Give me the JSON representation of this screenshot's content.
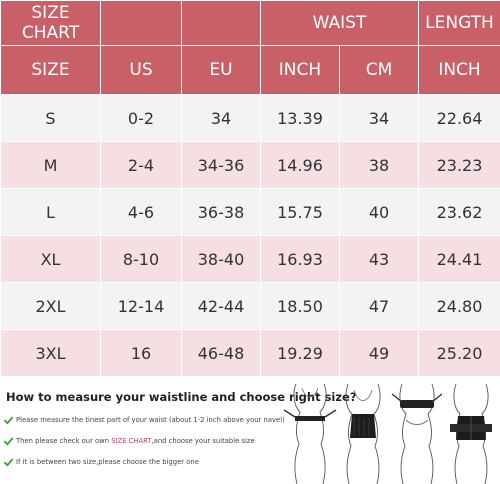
{
  "table": {
    "header_row1": {
      "size_chart": "SIZE CHART",
      "waist": "WAIST",
      "length": "LENGTH"
    },
    "header_row2": [
      "SIZE",
      "US",
      "EU",
      "INCH",
      "CM",
      "INCH"
    ],
    "rows": [
      [
        "S",
        "0-2",
        "34",
        "13.39",
        "34",
        "22.64"
      ],
      [
        "M",
        "2-4",
        "34-36",
        "14.96",
        "38",
        "23.23"
      ],
      [
        "L",
        "4-6",
        "36-38",
        "15.75",
        "40",
        "23.62"
      ],
      [
        "XL",
        "8-10",
        "38-40",
        "16.93",
        "43",
        "24.41"
      ],
      [
        "2XL",
        "12-14",
        "42-44",
        "18.50",
        "47",
        "24.80"
      ],
      [
        "3XL",
        "16",
        "46-48",
        "19.29",
        "49",
        "25.20"
      ]
    ],
    "colors": {
      "header": "#c95f67",
      "row_light": "#f3f3f3",
      "row_pink": "#f6dfe2"
    }
  },
  "measure": {
    "title": "How to measure your waistline and choose right size?",
    "tips": [
      {
        "pre": "Please measure the tinest part of your waist (about 1-2 inch above your navel)",
        "hl": "",
        "post": ""
      },
      {
        "pre": "Then please check our own ",
        "hl": "SIZE CHART",
        "post": ",and choose your suitable size"
      },
      {
        "pre": "If it is between two size,please choose the bigger one",
        "hl": "",
        "post": ""
      }
    ],
    "check_color": "#3aa335",
    "figures": [
      "figure-measure-tape",
      "figure-front-waist-trainer",
      "figure-bust-measure",
      "figure-back-waist-trainer"
    ]
  }
}
